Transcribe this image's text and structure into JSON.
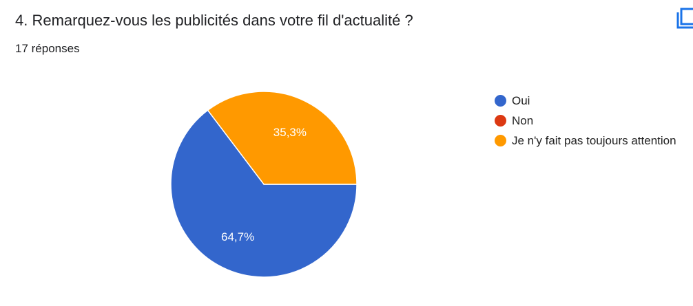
{
  "question": {
    "title": "4. Remarquez-vous les publicités dans votre fil d'actualité ?",
    "response_count": "17 réponses"
  },
  "icons": {
    "copy": "copy-chart-icon"
  },
  "colors": {
    "blue": "#3366cc",
    "red": "#dc3912",
    "orange": "#ff9900",
    "slice_border": "#ffffff",
    "slice_label": "#ffffff"
  },
  "chart_data": {
    "type": "pie",
    "title": "",
    "slices": [
      {
        "label": "Oui",
        "value": 64.7,
        "display": "64,7%",
        "color": "#3366cc"
      },
      {
        "label": "Non",
        "value": 0,
        "display": "",
        "color": "#dc3912"
      },
      {
        "label": "Je n'y fait pas toujours attention",
        "value": 35.3,
        "display": "35,3%",
        "color": "#ff9900"
      }
    ],
    "legend_position": "right",
    "start_angle": "3 o'clock, clockwise"
  }
}
